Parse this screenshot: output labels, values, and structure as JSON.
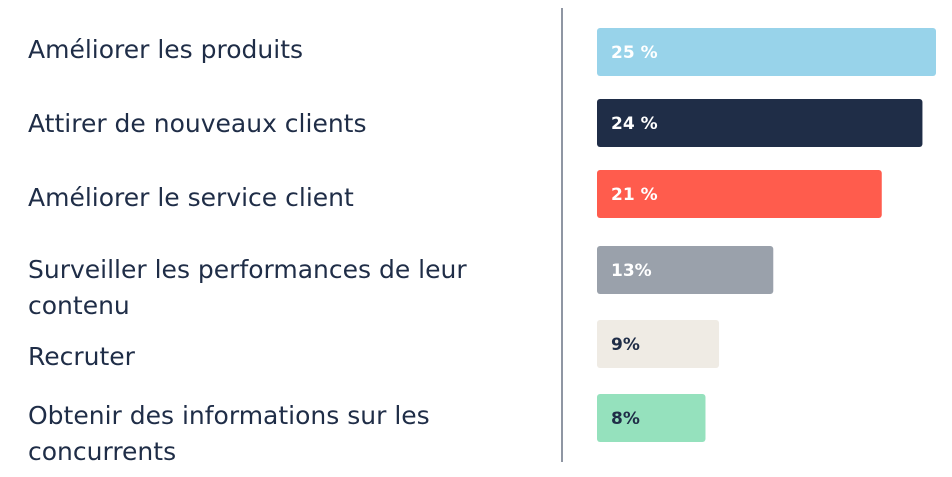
{
  "chart_data": {
    "type": "bar",
    "orientation": "horizontal",
    "title": "",
    "xlabel": "",
    "ylabel": "",
    "xlim": [
      0,
      25
    ],
    "grid": false,
    "categories": [
      "Améliorer les produits",
      "Attirer de nouveaux clients",
      "Améliorer le service client",
      "Surveiller les performances de leur contenu",
      "Recruter",
      "Obtenir des informations sur les concurrents"
    ],
    "values": [
      25,
      24,
      21,
      13,
      9,
      8
    ],
    "value_labels": [
      "25 %",
      "24 %",
      "21 %",
      "13%",
      "9%",
      "8%"
    ],
    "colors": [
      "#98d3ea",
      "#1f2d47",
      "#ff5c4d",
      "#9aa1ab",
      "#efebe4",
      "#95e1bd"
    ],
    "label_colors": [
      "#ffffff",
      "#ffffff",
      "#ffffff",
      "#ffffff",
      "#1f2d47",
      "#1f2d47"
    ]
  }
}
